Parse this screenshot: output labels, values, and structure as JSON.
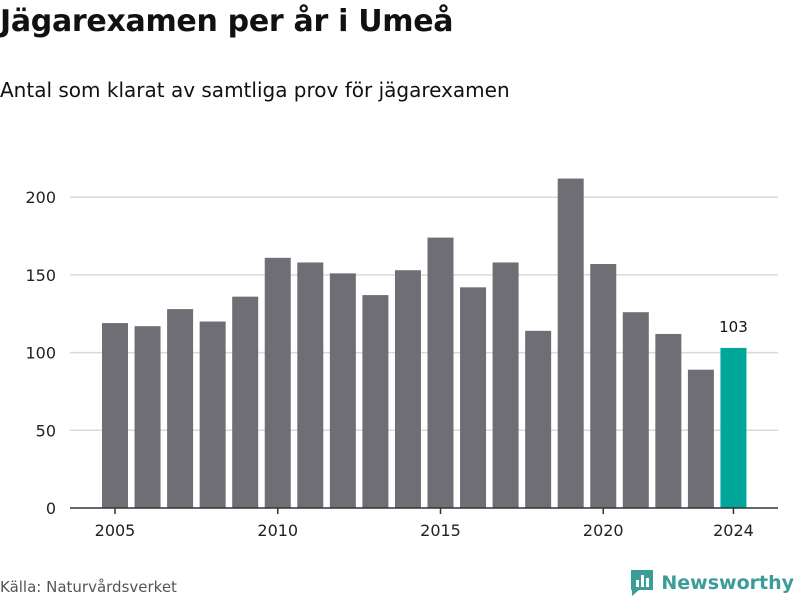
{
  "title": "Jägarexamen per år i Umeå",
  "subtitle": "Antal som klarat av samtliga prov för jägarexamen",
  "source": "Källa: Naturvårdsverket",
  "brand": "Newsworthy",
  "colors": {
    "bar": "#6f6e75",
    "highlight": "#00a69a",
    "grid": "#d9d9d9",
    "axis": "#333333",
    "brand": "#3b9c98"
  },
  "chart_data": {
    "type": "bar",
    "categories": [
      "2005",
      "2006",
      "2007",
      "2008",
      "2009",
      "2010",
      "2011",
      "2012",
      "2013",
      "2014",
      "2015",
      "2016",
      "2017",
      "2018",
      "2019",
      "2020",
      "2021",
      "2022",
      "2023",
      "2024"
    ],
    "values": [
      119,
      117,
      128,
      120,
      136,
      161,
      158,
      151,
      137,
      153,
      174,
      142,
      158,
      114,
      212,
      157,
      126,
      112,
      89,
      103
    ],
    "highlight_category": "2024",
    "highlight_label": "103",
    "x_tick_labels": [
      "2005",
      "2010",
      "2015",
      "2020",
      "2024"
    ],
    "y_ticks": [
      0,
      50,
      100,
      150,
      200
    ],
    "ylim": [
      0,
      212
    ],
    "grid": "horizontal",
    "xlabel": "",
    "ylabel": ""
  }
}
